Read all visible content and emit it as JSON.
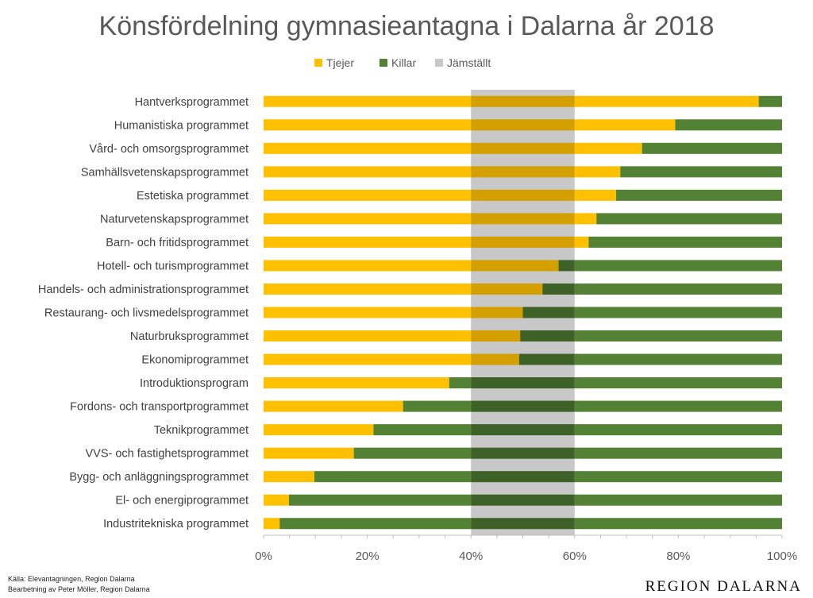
{
  "chart_data": {
    "type": "bar",
    "orientation": "horizontal",
    "stacked": true,
    "title": "Könsfördelning gymnasieantagna i Dalarna år 2018",
    "legend": [
      "Tjejer",
      "Killar",
      "Jämställt"
    ],
    "legend_position": "top",
    "categories": [
      "Hantverksprogrammet",
      "Humanistiska programmet",
      "Vård- och omsorgsprogrammet",
      "Samhällsvetenskapsprogrammet",
      "Estetiska programmet",
      "Naturvetenskapsprogrammet",
      "Barn- och fritidsprogrammet",
      "Hotell- och turismprogrammet",
      "Handels- och administrationsprogrammet",
      "Restaurang- och livsmedelsprogrammet",
      "Naturbruksprogrammet",
      "Ekonomiprogrammet",
      "Introduktionsprogram",
      "Fordons- och transportprogrammet",
      "Teknikprogrammet",
      "VVS- och fastighetsprogrammet",
      "Bygg- och anläggningsprogrammet",
      "El- och energiprogrammet",
      "Industritekniska programmet"
    ],
    "series": [
      {
        "name": "Tjejer",
        "values": [
          95.5,
          79.4,
          73.0,
          68.8,
          68.0,
          64.2,
          62.7,
          56.9,
          53.8,
          50.0,
          49.5,
          49.3,
          35.8,
          26.9,
          21.2,
          17.4,
          9.8,
          4.9,
          3.1
        ]
      },
      {
        "name": "Killar",
        "values": [
          4.5,
          20.6,
          27.0,
          31.2,
          32.0,
          35.8,
          37.3,
          43.1,
          46.2,
          50.0,
          50.5,
          50.7,
          64.2,
          73.1,
          78.8,
          82.6,
          90.2,
          95.1,
          96.9
        ]
      }
    ],
    "equality_band": [
      40,
      60
    ],
    "xlim": [
      0,
      100
    ],
    "xticks": [
      "0%",
      "20%",
      "40%",
      "60%",
      "80%",
      "100%"
    ],
    "colors": {
      "tjejer": "#FFC000",
      "killar": "#548235",
      "band": "#C8C8C8",
      "tjejer_band": "#D4A000",
      "killar_band": "#3E6128"
    }
  },
  "source": {
    "line1": "Källa: Elevantagningen, Region Dalarna",
    "line2": "Bearbetning av Peter Möller, Region Dalarna"
  },
  "logo": "REGION DALARNA"
}
